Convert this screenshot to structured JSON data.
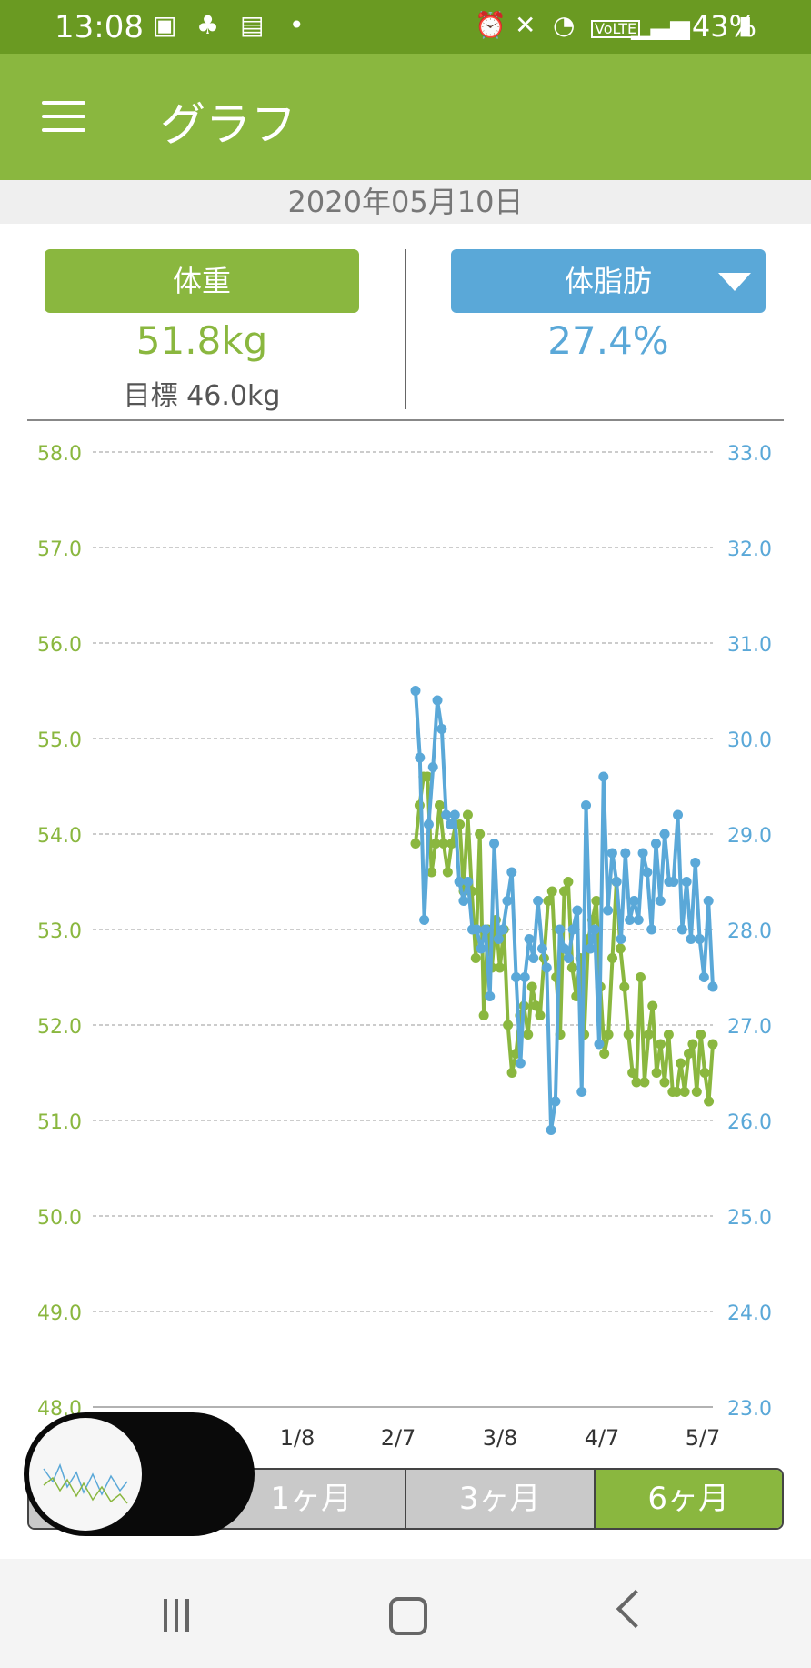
{
  "status_bar": {
    "time": "13:08",
    "battery": "43%",
    "icons": [
      "gallery-icon",
      "app-icon",
      "note-icon",
      "dot-icon",
      "alarm-icon",
      "mute-icon",
      "wifi-icon",
      "volte-icon",
      "signal-icon",
      "battery-icon"
    ]
  },
  "app_bar": {
    "title": "グラフ"
  },
  "date": "2020年05月10日",
  "weight": {
    "label": "体重",
    "value": "51.8kg",
    "goal": "目標 46.0kg"
  },
  "fat": {
    "label": "体脂肪",
    "value": "27.4%"
  },
  "period_tabs": [
    {
      "label": "1ヶ月"
    },
    {
      "label": "3ヶ月"
    },
    {
      "label": "6ヶ月",
      "active": true
    }
  ],
  "colors": {
    "weight": "#8ab73f",
    "fat": "#5aa8d8",
    "appbar": "#8ab73f",
    "statusbar": "#6a9a22"
  },
  "chart_data": {
    "type": "line",
    "x_ticks": [
      "1/8",
      "2/7",
      "3/8",
      "4/7",
      "5/7"
    ],
    "y_left": {
      "ticks": [
        "58.0",
        "57.0",
        "56.0",
        "55.0",
        "54.0",
        "53.0",
        "52.0",
        "51.0",
        "50.0",
        "49.0",
        "48.0"
      ],
      "range": [
        48.0,
        58.0
      ]
    },
    "y_right": {
      "ticks": [
        "33.0",
        "32.0",
        "31.0",
        "30.0",
        "29.0",
        "28.0",
        "27.0",
        "26.0",
        "25.0",
        "24.0",
        "23.0"
      ],
      "range": [
        23.0,
        33.0
      ]
    },
    "grid": true,
    "series": [
      {
        "key": "weight",
        "values": [
          53.9,
          54.3,
          54.6,
          54.6,
          53.6,
          53.9,
          54.3,
          53.9,
          53.6,
          53.9,
          54.1,
          54.1,
          53.4,
          54.2,
          53.4,
          52.7,
          54.0,
          52.1,
          53.0,
          52.6,
          53.1,
          52.6,
          53.0,
          52.0,
          51.5,
          51.7,
          52.1,
          52.2,
          51.9,
          52.4,
          52.2,
          52.1,
          52.7,
          53.3,
          53.4,
          52.5,
          51.9,
          53.4,
          53.5,
          52.6,
          52.3,
          52.7,
          51.9,
          52.9,
          53.1,
          53.3,
          52.4,
          51.7,
          51.9,
          52.7,
          53.5,
          52.8,
          52.4,
          51.9,
          51.5,
          51.4,
          52.5,
          51.4,
          51.9,
          52.2,
          51.5,
          51.8,
          51.4,
          51.9,
          51.3,
          51.3,
          51.6,
          51.3,
          51.7,
          51.8,
          51.3,
          51.9,
          51.5,
          51.2,
          51.8
        ]
      },
      {
        "key": "fat",
        "values": [
          30.5,
          29.8,
          28.1,
          29.1,
          29.7,
          30.4,
          30.1,
          29.2,
          29.1,
          29.2,
          28.5,
          28.3,
          28.5,
          28.0,
          28.0,
          27.8,
          28.0,
          27.3,
          28.9,
          27.9,
          28.0,
          28.3,
          28.6,
          27.5,
          26.6,
          27.5,
          27.9,
          27.7,
          28.3,
          27.8,
          27.6,
          25.9,
          26.2,
          28.0,
          27.8,
          27.7,
          28.0,
          28.2,
          26.3,
          29.3,
          27.8,
          28.0,
          26.8,
          29.6,
          28.2,
          28.8,
          28.5,
          27.9,
          28.8,
          28.1,
          28.3,
          28.1,
          28.8,
          28.6,
          28.0,
          28.9,
          28.3,
          29.0,
          28.5,
          28.5,
          29.2,
          28.0,
          28.5,
          27.9,
          28.7,
          27.9,
          27.5,
          28.3,
          27.4
        ],
        "x_offset": 0
      }
    ]
  }
}
